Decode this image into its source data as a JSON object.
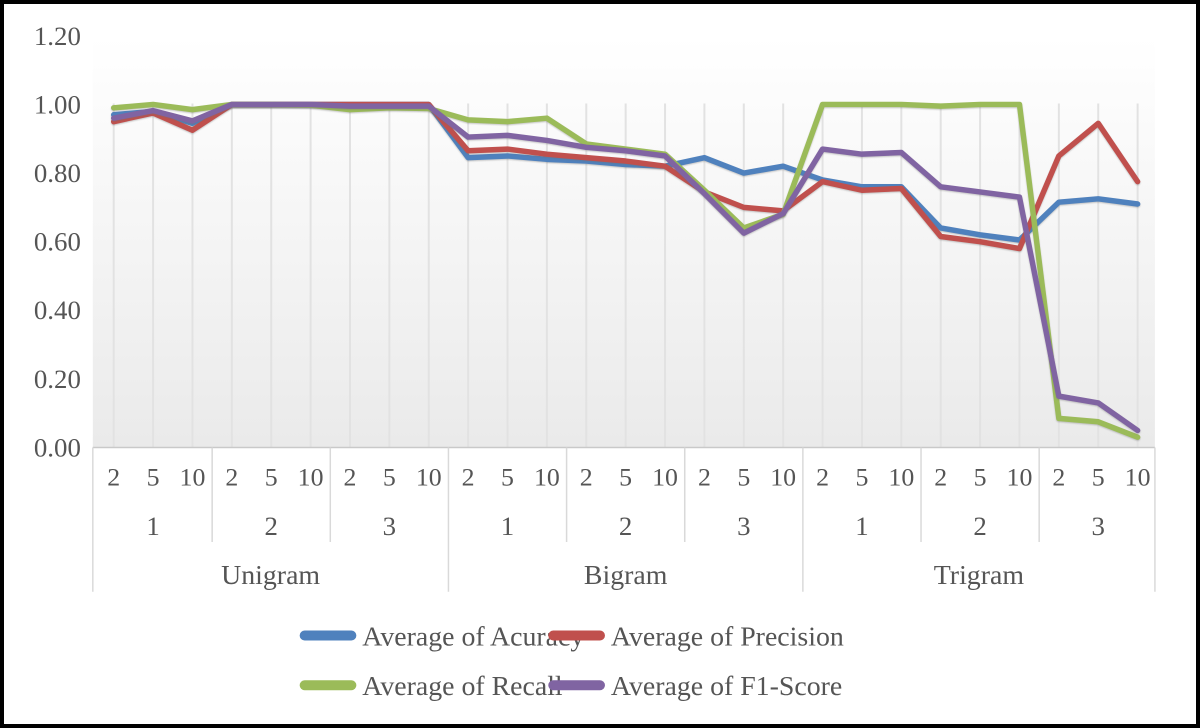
{
  "chart_data": {
    "type": "line",
    "title": "",
    "y_axis": {
      "min": 0,
      "max": 1.2,
      "ticks": [
        {
          "label": "1.20",
          "value": 1.2
        },
        {
          "label": "1.00",
          "value": 1.0
        },
        {
          "label": "0.80",
          "value": 0.8
        },
        {
          "label": "0.60",
          "value": 0.6
        },
        {
          "label": "0.40",
          "value": 0.4
        },
        {
          "label": "0.20",
          "value": 0.2
        },
        {
          "label": "0.00",
          "value": 0.0
        }
      ]
    },
    "x_axis": {
      "groups": [
        {
          "label": "Unigram",
          "subgroups": [
            {
              "label": "1",
              "ticks": [
                "2",
                "5",
                "10"
              ]
            },
            {
              "label": "2",
              "ticks": [
                "2",
                "5",
                "10"
              ]
            },
            {
              "label": "3",
              "ticks": [
                "2",
                "5",
                "10"
              ]
            }
          ]
        },
        {
          "label": "Bigram",
          "subgroups": [
            {
              "label": "1",
              "ticks": [
                "2",
                "5",
                "10"
              ]
            },
            {
              "label": "2",
              "ticks": [
                "2",
                "5",
                "10"
              ]
            },
            {
              "label": "3",
              "ticks": [
                "2",
                "5",
                "10"
              ]
            }
          ]
        },
        {
          "label": "Trigram",
          "subgroups": [
            {
              "label": "1",
              "ticks": [
                "2",
                "5",
                "10"
              ]
            },
            {
              "label": "2",
              "ticks": [
                "2",
                "5",
                "10"
              ]
            },
            {
              "label": "3",
              "ticks": [
                "2",
                "5",
                "10"
              ]
            }
          ]
        }
      ]
    },
    "series": [
      {
        "name": "Average of Acuracy",
        "color": "#4F81BD",
        "values": [
          0.97,
          0.98,
          0.945,
          1.0,
          1.0,
          1.0,
          1.0,
          1.0,
          1.0,
          0.845,
          0.85,
          0.84,
          0.835,
          0.825,
          0.82,
          0.845,
          0.8,
          0.82,
          0.78,
          0.76,
          0.76,
          0.64,
          0.62,
          0.605,
          0.715,
          0.725,
          0.71
        ]
      },
      {
        "name": "Average of Precision",
        "color": "#C0504D",
        "values": [
          0.95,
          0.975,
          0.925,
          1.0,
          1.0,
          1.0,
          1.0,
          1.0,
          1.0,
          0.865,
          0.87,
          0.855,
          0.845,
          0.835,
          0.82,
          0.745,
          0.7,
          0.69,
          0.775,
          0.75,
          0.755,
          0.615,
          0.6,
          0.58,
          0.85,
          0.945,
          0.775
        ]
      },
      {
        "name": "Average of Recall",
        "color": "#9BBB59",
        "values": [
          0.99,
          1.0,
          0.985,
          1.0,
          1.0,
          0.998,
          0.985,
          0.99,
          0.988,
          0.955,
          0.95,
          0.96,
          0.885,
          0.87,
          0.855,
          0.75,
          0.64,
          0.68,
          1.0,
          1.0,
          1.0,
          0.995,
          1.0,
          1.0,
          0.085,
          0.075,
          0.03
        ]
      },
      {
        "name": "Average of F1-Score",
        "color": "#8064A2",
        "values": [
          0.96,
          0.982,
          0.952,
          1.0,
          1.0,
          1.0,
          0.995,
          0.995,
          0.995,
          0.905,
          0.91,
          0.895,
          0.875,
          0.865,
          0.85,
          0.74,
          0.625,
          0.682,
          0.87,
          0.855,
          0.86,
          0.76,
          0.745,
          0.73,
          0.15,
          0.13,
          0.05
        ]
      }
    ],
    "legend": {
      "position": "bottom",
      "columns": 2
    }
  },
  "colors": {
    "text": "#555555",
    "gridline": "#e2e2e2",
    "separator": "#d9d9d9",
    "axis_line": "#c9c9c9",
    "plot_bg_top": "#ffffff",
    "plot_bg_bottom": "#eaeaea",
    "frame_border": "#000000"
  }
}
